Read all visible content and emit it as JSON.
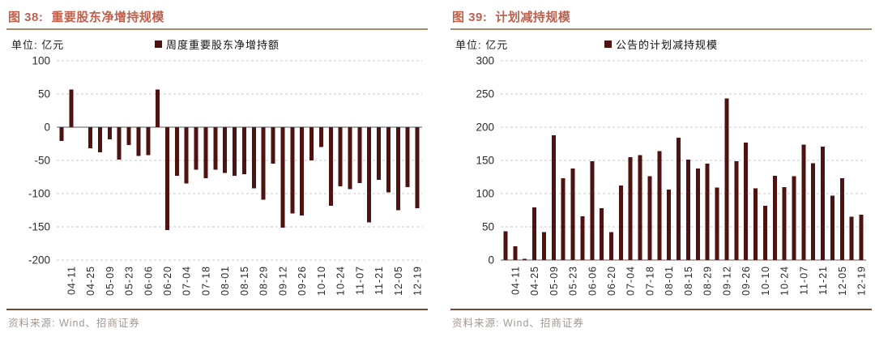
{
  "page": {
    "source_label": "资料来源: Wind、招商证券"
  },
  "colors": {
    "bar": "#4e1211",
    "title": "#c05f4c",
    "title_rule": "#a98a6d",
    "footer_rule": "#7c4536",
    "source_text": "#a29890",
    "axis_text": "#2b2b2b",
    "grid": "#c9c9c9",
    "zero_line": "#595959"
  },
  "chart_data": [
    {
      "type": "bar",
      "fig_label": "图 38:",
      "title": "重要股东净增持规模",
      "unit_label": "单位: 亿元",
      "legend": "周度重要股东净增持额",
      "ylabel": "亿元",
      "ylim": [
        -200,
        100
      ],
      "yticks": [
        100,
        50,
        0,
        -50,
        -100,
        -150,
        -200
      ],
      "solid_tick": 0,
      "grid": "dashed horizontal",
      "legend_position": "top-center",
      "x_tick_labels": [
        "04-11",
        "04-25",
        "05-09",
        "05-23",
        "06-06",
        "06-20",
        "07-04",
        "07-18",
        "08-01",
        "08-15",
        "08-29",
        "09-12",
        "09-26",
        "10-10",
        "10-24",
        "11-07",
        "11-21",
        "12-05",
        "12-19"
      ],
      "x_tick_under_every_second_bar": true,
      "values": [
        -21,
        57,
        0,
        -32,
        -38,
        -18,
        -49,
        -27,
        -43,
        -42,
        57,
        -155,
        -73,
        -85,
        -64,
        -77,
        -64,
        -69,
        -73,
        -71,
        -92,
        -109,
        -55,
        -151,
        -130,
        -133,
        -50,
        -30,
        -118,
        -89,
        -93,
        -84,
        -143,
        -79,
        -98,
        -125,
        -90,
        -122
      ]
    },
    {
      "type": "bar",
      "fig_label": "图 39:",
      "title": "计划减持规模",
      "unit_label": "单位: 亿元",
      "legend": "公告的计划减持规模",
      "ylabel": "亿元",
      "ylim": [
        0,
        300
      ],
      "yticks": [
        300,
        250,
        200,
        150,
        100,
        50,
        0
      ],
      "solid_tick": 0,
      "grid": "dashed horizontal",
      "legend_position": "top-center",
      "x_tick_labels": [
        "04-11",
        "04-25",
        "05-09",
        "05-23",
        "06-06",
        "06-20",
        "07-04",
        "07-18",
        "08-01",
        "08-15",
        "08-29",
        "09-12",
        "09-26",
        "10-10",
        "10-24",
        "11-07",
        "11-21",
        "12-05",
        "12-19"
      ],
      "x_tick_under_every_second_bar": true,
      "values": [
        43,
        21,
        2,
        79,
        42,
        188,
        123,
        138,
        66,
        149,
        78,
        42,
        112,
        155,
        158,
        126,
        164,
        106,
        184,
        151,
        138,
        145,
        109,
        243,
        149,
        177,
        108,
        82,
        127,
        110,
        126,
        174,
        146,
        171,
        97,
        123,
        65,
        68
      ]
    }
  ]
}
